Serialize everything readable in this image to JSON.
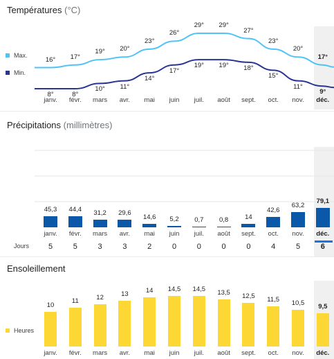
{
  "months": [
    "janv.",
    "févr.",
    "mars",
    "avr.",
    "mai",
    "juin",
    "juil.",
    "août",
    "sept.",
    "oct.",
    "nov.",
    "déc."
  ],
  "selected_index": 11,
  "colors": {
    "max": "#4fc3f7",
    "min": "#283593",
    "precip": "#0b57a8",
    "sun": "#fdd835",
    "selected_underline": "#1a73e8"
  },
  "temperature": {
    "title": "Températures",
    "unit": "(°C)",
    "max_legend": "Max.",
    "min_legend": "Min.",
    "max_labels": [
      "16°",
      "17°",
      "19°",
      "20°",
      "23°",
      "26°",
      "29°",
      "29°",
      "27°",
      "23°",
      "20°",
      "17°"
    ],
    "min_labels": [
      "8°",
      "8°",
      "10°",
      "11°",
      "14°",
      "17°",
      "19°",
      "19°",
      "18°",
      "15°",
      "11°",
      "9°"
    ]
  },
  "precipitation": {
    "title": "Précipitations",
    "unit": "(millimètres)",
    "value_labels": [
      "45,3",
      "44,4",
      "31,2",
      "29,6",
      "14,6",
      "5,2",
      "0,7",
      "0,8",
      "14",
      "42,6",
      "63,2",
      "79,1"
    ],
    "days_label": "Jours",
    "days": [
      "5",
      "5",
      "3",
      "3",
      "2",
      "0",
      "0",
      "0",
      "0",
      "4",
      "5",
      "6"
    ]
  },
  "sunshine": {
    "title": "Ensoleillement",
    "legend": "Heures",
    "value_labels": [
      "10",
      "11",
      "12",
      "13",
      "14",
      "14,5",
      "14,5",
      "13,5",
      "12,5",
      "11,5",
      "10,5",
      "9,5"
    ]
  },
  "chart_data": [
    {
      "type": "line",
      "title": "Températures",
      "ylabel": "°C",
      "categories": [
        "janv.",
        "févr.",
        "mars",
        "avr.",
        "mai",
        "juin",
        "juil.",
        "août",
        "sept.",
        "oct.",
        "nov.",
        "déc."
      ],
      "series": [
        {
          "name": "Max.",
          "values": [
            16,
            17,
            19,
            20,
            23,
            26,
            29,
            29,
            27,
            23,
            20,
            17
          ]
        },
        {
          "name": "Min.",
          "values": [
            8,
            8,
            10,
            11,
            14,
            17,
            19,
            19,
            18,
            15,
            11,
            9
          ]
        }
      ],
      "grid": false,
      "legend": "left"
    },
    {
      "type": "bar",
      "title": "Précipitations",
      "ylabel": "millimètres",
      "categories": [
        "janv.",
        "févr.",
        "mars",
        "avr.",
        "mai",
        "juin",
        "juil.",
        "août",
        "sept.",
        "oct.",
        "nov.",
        "déc."
      ],
      "values": [
        45.3,
        44.4,
        31.2,
        29.6,
        14.6,
        5.2,
        0.7,
        0.8,
        14,
        42.6,
        63.2,
        79.1
      ],
      "ylim": [
        0,
        200
      ],
      "grid": true
    },
    {
      "type": "bar",
      "title": "Ensoleillement",
      "categories": [
        "janv.",
        "févr.",
        "mars",
        "avr.",
        "mai",
        "juin",
        "juil.",
        "août",
        "sept.",
        "oct.",
        "nov.",
        "déc."
      ],
      "series": [
        {
          "name": "Heures",
          "values": [
            10,
            11,
            12,
            13,
            14,
            14.5,
            14.5,
            13.5,
            12.5,
            11.5,
            10.5,
            9.5
          ]
        }
      ],
      "ylim": [
        0,
        20
      ],
      "legend": "left"
    }
  ]
}
